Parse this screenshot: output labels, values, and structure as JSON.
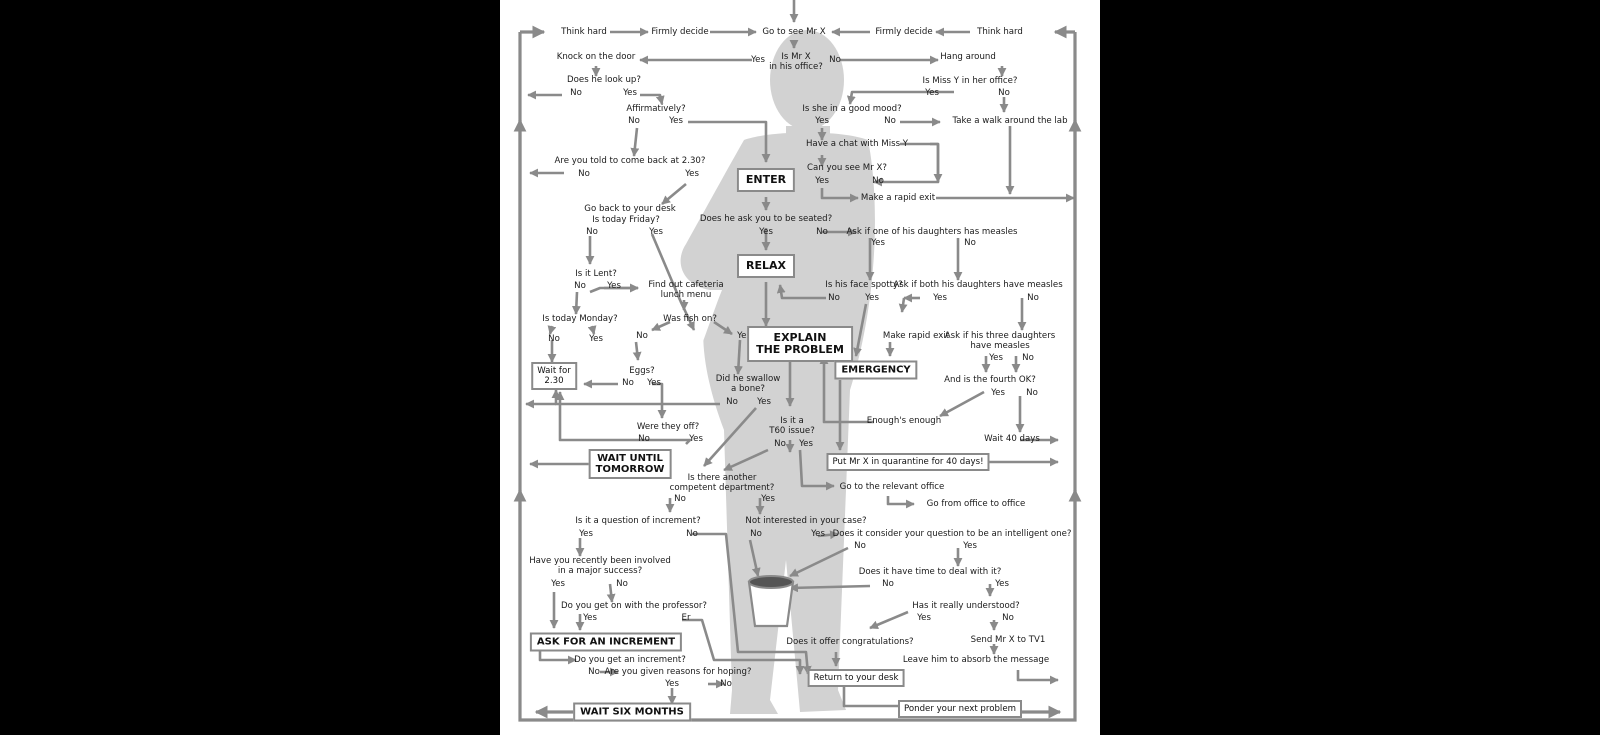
{
  "colors": {
    "page": "#ffffff",
    "surround": "#000000",
    "silhouette": "#d2d2d2",
    "arrow": "#8a8a8a",
    "text": "#1a1a1a"
  },
  "nodes": {
    "n1": "Think hard",
    "n2": "Firmly decide",
    "n3": "Go to see Mr X",
    "n4": "Firmly decide",
    "n5": "Think hard",
    "n6": "Knock on the door",
    "n7": "Yes",
    "n8": "Is Mr X\nin his office?",
    "n9": "No",
    "n10": "Hang around",
    "n11": "Does he look up?",
    "n12": "No",
    "n13": "Yes",
    "n14": "Is Miss Y in her office?",
    "n15": "Yes",
    "n16": "No",
    "n17": "Affirmatively?",
    "n18": "No",
    "n19": "Yes",
    "n20": "Is she in a good mood?",
    "n21": "Yes",
    "n22": "No",
    "n23": "Take a walk around the lab",
    "n24": "Have a chat with Miss Y",
    "n25": "Are you told to come back at 2.30?",
    "n26": "No",
    "n27": "Yes",
    "n28": "Can you see Mr X?",
    "n29": "Yes",
    "n30": "No",
    "n31": "Make a rapid exit",
    "n32": "Go back to your desk",
    "n33": "Is today Friday?",
    "n34": "No",
    "n35": "Yes",
    "n36": "Does he ask you to be seated?",
    "n37": "Yes",
    "n38": "No",
    "n39": "Ask if one of his daughters has measles",
    "n40": "Yes",
    "n41": "No",
    "n42": "Is it Lent?",
    "n43": "No",
    "n44": "Yes",
    "n45": "Find out cafeteria\nlunch menu",
    "n46": "Is his face spotty?",
    "n47": "No",
    "n48": "Yes",
    "n49": "Ask if both his daughters have measles",
    "n50": "Yes",
    "n51": "No",
    "n52": "Is today Monday?",
    "n53": "No",
    "n54": "Yes",
    "n55": "Was fish on?",
    "n56": "No",
    "n57": "Yes",
    "n58": "Make rapid exit",
    "n59": "Ask if his three daughters\nhave measles",
    "n60": "Yes",
    "n61": "No",
    "n62": "Eggs?",
    "n63": "No",
    "n64": "Yes",
    "n65": "Did he swallow\na bone?",
    "n66": "No",
    "n67": "Yes",
    "n68": "And is the fourth OK?",
    "n69": "Yes",
    "n70": "No",
    "n71": "Is it a\nT60 issue?",
    "n72": "No",
    "n73": "Yes",
    "n74": "Enough's enough",
    "n75": "Were they off?",
    "n76": "No",
    "n77": "Yes",
    "n78": "Wait 40 days",
    "n79": "Is there another\ncompetent department?",
    "n80": "No",
    "n81": "Yes",
    "n82": "Go to the relevant office",
    "n83": "Go from office to office",
    "n84": "Is it a question of increment?",
    "n85": "Yes",
    "n86": "No",
    "n87": "Not interested in your case?",
    "n88": "No",
    "n89": "Yes",
    "n90": "Does it consider your question to be an intelligent one?",
    "n91": "No",
    "n92": "Yes",
    "n93": "Have you recently been involved\nin a major success?",
    "n94": "Yes",
    "n95": "No",
    "n96": "Does it have time to deal with it?",
    "n97": "No",
    "n98": "Yes",
    "n99": "Do you get on with the professor?",
    "n100": "Yes",
    "n101": "Er",
    "n102": "Has it really understood?",
    "n103": "Yes",
    "n104": "No",
    "n105": "Does it offer congratulations?",
    "n106": "Send Mr X to TV1",
    "n107": "Do you get an increment?",
    "n108": "Leave him to absorb the message",
    "n109": "No",
    "n110": "Are you given reasons for hoping?",
    "n111": "Yes",
    "n112": "No"
  },
  "boxes": {
    "enter": "ENTER",
    "relax": "RELAX",
    "explain": "EXPLAIN\nTHE PROBLEM",
    "emergency": "EMERGENCY",
    "wait230": "Wait for\n2.30",
    "wait_tomorrow": "WAIT UNTIL\nTOMORROW",
    "quarantine": "Put Mr X in quarantine for 40 days!",
    "ask_increment": "ASK FOR AN INCREMENT",
    "return_desk": "Return to your desk",
    "wait_six": "WAIT SIX MONTHS",
    "ponder": "Ponder your next problem"
  }
}
